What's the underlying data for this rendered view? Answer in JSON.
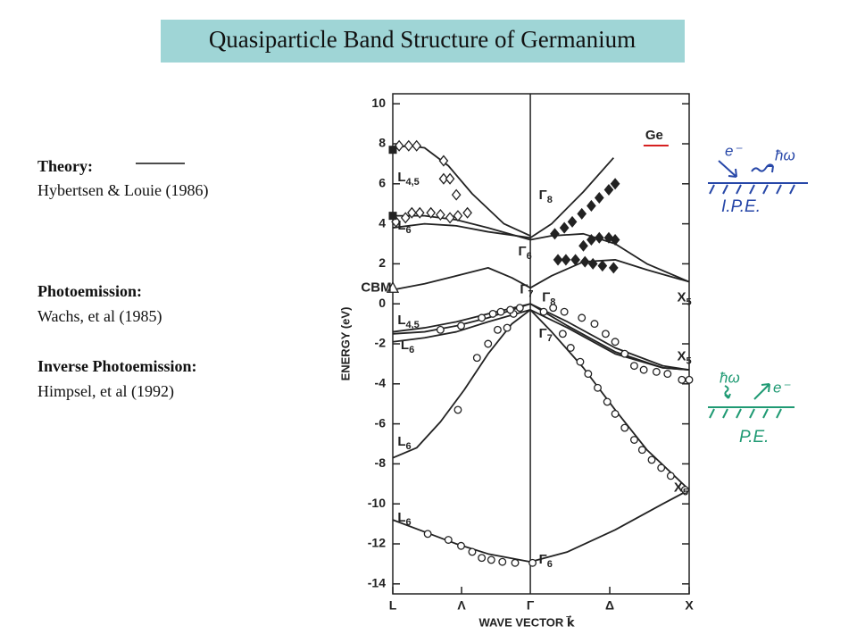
{
  "title": "Quasiparticle Band Structure of Germanium",
  "legend_text": {
    "theory_label": "Theory:",
    "theory_ref": "Hybertsen & Louie (1986)",
    "pe_label": "Photoemission:",
    "pe_ref": "Wachs, et al (1985)",
    "ipe_label": "Inverse Photoemission:",
    "ipe_ref": "Himpsel, et al (1992)"
  },
  "insets": [
    {
      "electron": "e⁻",
      "photon": "ħω",
      "label": "I.P.E.",
      "color": "#2747a8"
    },
    {
      "electron": "e⁻",
      "photon": "ħω",
      "label": "P.E.",
      "color": "#1f9a73"
    }
  ],
  "chart_data": {
    "type": "line",
    "y_label": "ENERGY (eV)",
    "x_label": "WAVE VECTOR k⃗",
    "xlim": [
      0,
      1.866
    ],
    "xticks": [
      {
        "value": 0,
        "label": "L"
      },
      {
        "value": 0.433,
        "label": "Λ"
      },
      {
        "value": 0.866,
        "label": "Γ"
      },
      {
        "value": 1.366,
        "label": "Δ"
      },
      {
        "value": 1.866,
        "label": "X"
      }
    ],
    "ylim": [
      -14.5,
      10.5
    ],
    "yticks": [
      10,
      8,
      6,
      4,
      2,
      0,
      -2,
      -4,
      -6,
      -8,
      -10,
      -12,
      -14
    ],
    "series": [
      {
        "type": "line",
        "color": "#222222",
        "x": [
          0,
          0.2,
          0.4,
          0.6,
          0.866,
          1.1,
          1.4,
          1.7,
          1.866
        ],
        "values": [
          -10.8,
          -11.4,
          -12.0,
          -12.5,
          -12.9,
          -12.4,
          -11.3,
          -10.0,
          -9.3
        ]
      },
      {
        "type": "line",
        "color": "#222222",
        "x": [
          0,
          0.15,
          0.3,
          0.45,
          0.6,
          0.75,
          0.866,
          1.0,
          1.2,
          1.4,
          1.6,
          1.866
        ],
        "values": [
          -7.7,
          -7.2,
          -5.9,
          -4.3,
          -2.5,
          -1.0,
          -0.3,
          -1.4,
          -3.2,
          -5.3,
          -7.3,
          -9.3
        ]
      },
      {
        "type": "line",
        "color": "#222222",
        "x": [
          0,
          0.2,
          0.4,
          0.6,
          0.866,
          1.1,
          1.4,
          1.7,
          1.866
        ],
        "values": [
          -1.4,
          -1.2,
          -0.9,
          -0.5,
          0,
          -0.9,
          -2.2,
          -3.1,
          -3.3
        ]
      },
      {
        "type": "line",
        "color": "#222222",
        "x": [
          0,
          0.2,
          0.4,
          0.6,
          0.866,
          1.1,
          1.4,
          1.7,
          1.866
        ],
        "values": [
          -1.5,
          -1.4,
          -1.1,
          -0.7,
          0,
          -1.1,
          -2.4,
          -3.2,
          -3.3
        ]
      },
      {
        "type": "line",
        "color": "#222222",
        "x": [
          0,
          0.2,
          0.4,
          0.6,
          0.866,
          1.1,
          1.4,
          1.7,
          1.866
        ],
        "values": [
          -1.9,
          -1.7,
          -1.4,
          -0.9,
          -0.3,
          -1.2,
          -2.5,
          -3.2,
          -3.3
        ]
      },
      {
        "type": "line",
        "color": "#222222",
        "x": [
          0,
          0.2,
          0.4,
          0.6,
          0.75,
          0.866,
          1.0,
          1.2,
          1.4,
          1.6,
          1.866
        ],
        "values": [
          0.7,
          1.0,
          1.4,
          1.8,
          1.3,
          0.8,
          1.4,
          2.1,
          2.2,
          1.7,
          1.1
        ]
      },
      {
        "type": "line",
        "color": "#222222",
        "x": [
          0,
          0.2,
          0.4,
          0.6,
          0.866,
          1.0,
          1.2,
          1.4,
          1.6,
          1.866
        ],
        "values": [
          4.4,
          4.4,
          4.2,
          3.8,
          3.2,
          3.4,
          3.5,
          3.0,
          2.0,
          1.1
        ]
      },
      {
        "type": "line",
        "color": "#222222",
        "x": [
          0,
          0.2,
          0.4,
          0.6,
          0.866,
          1.0,
          1.2,
          1.39
        ],
        "values": [
          3.8,
          4.0,
          3.9,
          3.6,
          3.3,
          4.0,
          5.6,
          7.3
        ]
      },
      {
        "type": "line",
        "color": "#222222",
        "x": [
          0,
          0.1,
          0.2,
          0.35,
          0.5,
          0.7,
          0.866
        ],
        "values": [
          7.8,
          7.9,
          7.8,
          6.9,
          5.5,
          4.0,
          3.4
        ]
      },
      {
        "type": "scatter",
        "marker": "circle",
        "color": "#222222",
        "x": [
          0.22,
          0.35,
          0.43,
          0.5,
          0.56,
          0.62,
          0.69,
          0.77,
          0.88,
          0.41,
          0.53,
          0.6,
          0.66,
          0.72,
          0.76,
          0.3,
          0.43,
          0.56,
          0.63,
          0.68,
          0.74,
          0.8,
          1.01,
          1.08,
          1.19,
          1.27,
          1.34,
          1.4,
          1.46,
          1.52,
          1.58,
          1.66,
          1.73,
          1.82,
          1.866,
          0.95,
          1.07,
          1.12,
          1.18,
          1.23,
          1.29,
          1.35,
          1.4,
          1.46,
          1.52,
          1.57,
          1.63,
          1.69,
          1.75,
          1.84
        ],
        "values": [
          -11.5,
          -11.8,
          -12.1,
          -12.4,
          -12.7,
          -12.8,
          -12.9,
          -12.95,
          -12.95,
          -5.3,
          -2.7,
          -2.0,
          -1.3,
          -1.2,
          -0.5,
          -1.3,
          -1.1,
          -0.7,
          -0.5,
          -0.4,
          -0.3,
          -0.2,
          -0.2,
          -0.4,
          -0.7,
          -1.0,
          -1.5,
          -1.9,
          -2.5,
          -3.1,
          -3.3,
          -3.4,
          -3.5,
          -3.8,
          -3.8,
          -0.4,
          -1.5,
          -2.2,
          -2.9,
          -3.5,
          -4.2,
          -4.9,
          -5.5,
          -6.2,
          -6.8,
          -7.3,
          -7.8,
          -8.2,
          -8.6,
          -9.3
        ]
      },
      {
        "type": "scatter",
        "marker": "diamond-filled",
        "color": "#222222",
        "x": [
          1.02,
          1.08,
          1.13,
          1.19,
          1.25,
          1.3,
          1.36,
          1.4,
          1.2,
          1.25,
          1.3,
          1.36,
          1.4,
          1.04,
          1.09,
          1.15,
          1.21,
          1.26,
          1.32,
          1.39
        ],
        "values": [
          3.5,
          3.8,
          4.1,
          4.5,
          4.9,
          5.3,
          5.7,
          6.0,
          2.9,
          3.2,
          3.3,
          3.3,
          3.2,
          2.2,
          2.2,
          2.2,
          2.1,
          2.0,
          1.9,
          1.8
        ]
      },
      {
        "type": "scatter",
        "marker": "diamond-open",
        "color": "#222222",
        "x": [
          0.04,
          0.1,
          0.15,
          0.32,
          0.32,
          0.36,
          0.4,
          0.02,
          0.08,
          0.12,
          0.17,
          0.24,
          0.3,
          0.36,
          0.41,
          0.47
        ],
        "values": [
          7.9,
          7.9,
          7.9,
          7.15,
          6.25,
          6.25,
          5.45,
          4.1,
          4.3,
          4.55,
          4.55,
          4.55,
          4.45,
          4.3,
          4.4,
          4.55
        ]
      },
      {
        "type": "scatter",
        "marker": "square-filled",
        "color": "#222222",
        "x": [
          0,
          0
        ],
        "values": [
          7.7,
          4.4
        ]
      },
      {
        "type": "scatter",
        "marker": "triangle-open",
        "color": "#222222",
        "x": [
          0
        ],
        "values": [
          0.8
        ]
      }
    ],
    "annotations": [
      {
        "text": "Ge",
        "x": 1.59,
        "y": 8.4,
        "underline_color": "#d62020"
      },
      {
        "text": "L",
        "sub": "4,5",
        "x": 0.03,
        "y": 6.3
      },
      {
        "text": "L",
        "sub": "6",
        "x": 0.03,
        "y": 3.9
      },
      {
        "text": "Γ",
        "sub": "8",
        "x": 0.92,
        "y": 5.4
      },
      {
        "text": "Γ",
        "sub": "6",
        "x": 0.79,
        "y": 2.6
      },
      {
        "text": "CBM",
        "x": -0.2,
        "y": 0.8
      },
      {
        "text": "Γ",
        "sub": "7",
        "x": 0.8,
        "y": 0.7
      },
      {
        "text": "Γ",
        "sub": "8",
        "x": 0.94,
        "y": 0.3
      },
      {
        "text": "X",
        "sub": "5",
        "x": 1.79,
        "y": 0.3
      },
      {
        "text": "L",
        "sub": "4,5",
        "x": 0.03,
        "y": -0.85
      },
      {
        "text": "L",
        "sub": "6",
        "x": 0.05,
        "y": -2.1
      },
      {
        "text": "Γ",
        "sub": "7",
        "x": 0.92,
        "y": -1.5
      },
      {
        "text": "X",
        "sub": "5",
        "x": 1.79,
        "y": -2.65
      },
      {
        "text": "L",
        "sub": "6",
        "x": 0.03,
        "y": -6.9
      },
      {
        "text": "X",
        "sub": "5",
        "x": 1.77,
        "y": -9.2
      },
      {
        "text": "L",
        "sub": "6",
        "x": 0.03,
        "y": -10.7
      },
      {
        "text": "Γ",
        "sub": "6",
        "x": 0.92,
        "y": -12.8
      }
    ]
  }
}
